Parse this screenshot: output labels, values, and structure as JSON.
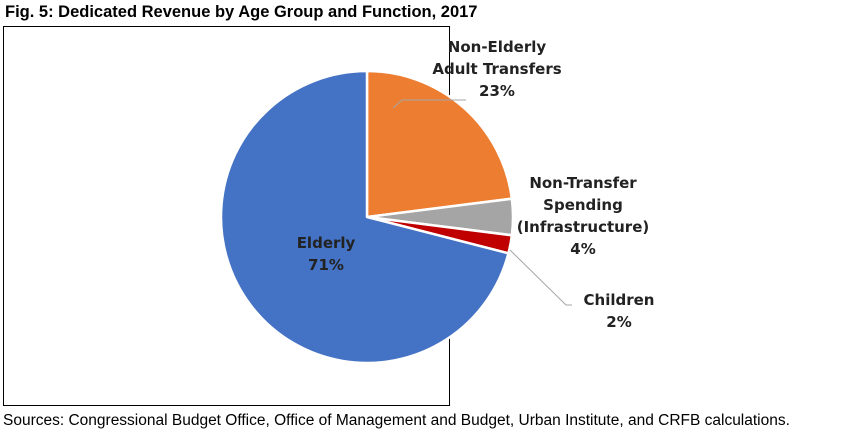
{
  "chart_data": {
    "type": "pie",
    "title": "Fig. 5: Dedicated Revenue by Age Group and Function, 2017",
    "source": "Sources: Congressional Budget Office, Office of Management and Budget, Urban Institute, and CRFB calculations.",
    "start_angle_deg": 0,
    "direction": "clockwise",
    "slices": [
      {
        "name": "Non-Elderly Adult Transfers",
        "label_lines": [
          "Non-Elderly",
          "Adult Transfers",
          "23%"
        ],
        "value": 23,
        "percent_label": "23%",
        "color": "#ED7D31"
      },
      {
        "name": "Non-Transfer Spending (Infrastructure)",
        "label_lines": [
          "Non-Transfer",
          "Spending",
          "(Infrastructure)",
          "4%"
        ],
        "value": 4,
        "percent_label": "4%",
        "color": "#A5A5A5"
      },
      {
        "name": "Children",
        "label_lines": [
          "Children",
          "2%"
        ],
        "value": 2,
        "percent_label": "2%",
        "color": "#C00000"
      },
      {
        "name": "Elderly",
        "label_lines": [
          "Elderly",
          "71%"
        ],
        "value": 71,
        "percent_label": "71%",
        "color": "#4472C4"
      }
    ]
  }
}
